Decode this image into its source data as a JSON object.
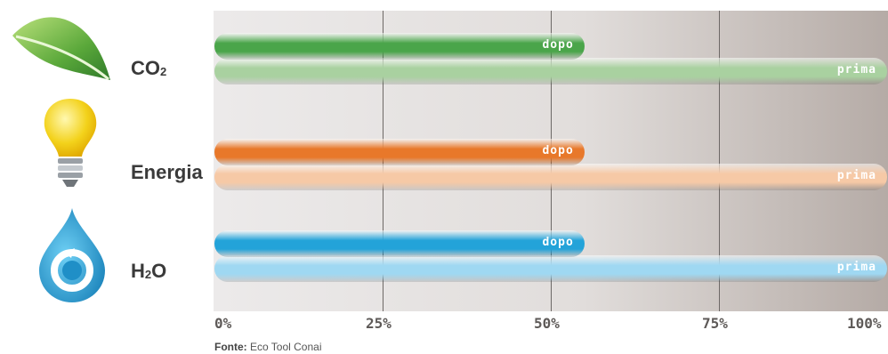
{
  "chart_data": {
    "type": "bar",
    "orientation": "horizontal",
    "categories": [
      {
        "base": "CO",
        "sub": "2",
        "suffix": "",
        "icon": "leaf-icon"
      },
      {
        "base": "Energia",
        "sub": "",
        "suffix": "",
        "icon": "lightbulb-icon"
      },
      {
        "base": "H",
        "sub": "2",
        "suffix": "O",
        "icon": "water-drop-icon"
      }
    ],
    "series": [
      {
        "name": "dopo",
        "values": [
          55,
          55,
          55
        ]
      },
      {
        "name": "prima",
        "values": [
          100,
          100,
          100
        ]
      }
    ],
    "xlim": [
      0,
      100
    ],
    "x_ticks": [
      "0%",
      "25%",
      "50%",
      "75%",
      "100%"
    ],
    "grid": true,
    "colors": {
      "dopo": [
        "#4aa54a",
        "#e8782a",
        "#23a3d9"
      ],
      "prima": [
        "#a9d1a0",
        "#f6c9a6",
        "#9fd8f2"
      ]
    }
  },
  "source": {
    "label": "Fonte:",
    "text": "Eco Tool Conai"
  }
}
